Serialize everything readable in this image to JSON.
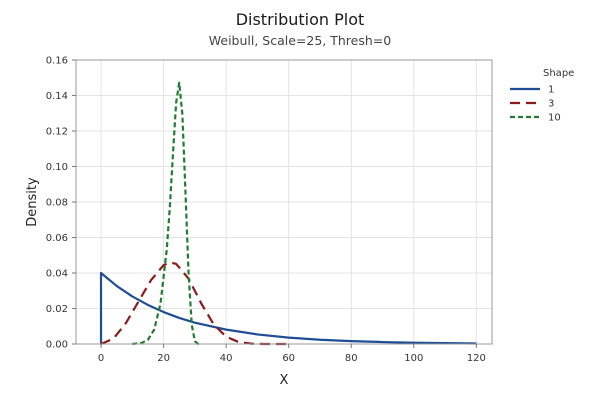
{
  "chart_data": {
    "type": "line",
    "title": "Distribution Plot",
    "subtitle": "Weibull, Scale=25, Thresh=0",
    "xlabel": "X",
    "ylabel": "Density",
    "xlim": [
      -8,
      125
    ],
    "ylim": [
      0,
      0.16
    ],
    "x_ticks": [
      0,
      20,
      40,
      60,
      80,
      100,
      120
    ],
    "y_ticks": [
      0.0,
      0.02,
      0.04,
      0.06,
      0.08,
      0.1,
      0.12,
      0.14,
      0.16
    ],
    "y_tick_labels": [
      "0.00",
      "0.02",
      "0.04",
      "0.06",
      "0.08",
      "0.10",
      "0.12",
      "0.14",
      "0.16"
    ],
    "grid": true,
    "legend": {
      "title": "Shape",
      "placement": "right"
    },
    "series": [
      {
        "name": "1",
        "color": "#1f4e96",
        "dash": "solid",
        "x": [
          0,
          0,
          5,
          10,
          15,
          20,
          25,
          30,
          40,
          50,
          60,
          70,
          80,
          90,
          100,
          110,
          120
        ],
        "y": [
          0,
          0.04,
          0.0327,
          0.0268,
          0.022,
          0.018,
          0.0147,
          0.012,
          0.0081,
          0.0054,
          0.0036,
          0.0024,
          0.0016,
          0.0011,
          0.0007,
          0.0005,
          0.0003
        ]
      },
      {
        "name": "3",
        "color": "#8b1a1a",
        "dash": "long-dash",
        "x": [
          0,
          4,
          8,
          12,
          16,
          20,
          22,
          24,
          28,
          32,
          36,
          40,
          44,
          48,
          52,
          56,
          60
        ],
        "y": [
          0,
          0.0031,
          0.0119,
          0.024,
          0.036,
          0.0444,
          0.0459,
          0.0452,
          0.0368,
          0.023,
          0.0111,
          0.0041,
          0.0011,
          0.0002,
          0.0,
          0.0,
          0.0
        ]
      },
      {
        "name": "10",
        "color": "#1e7d32",
        "dash": "short-dash",
        "x": [
          10,
          13,
          15,
          17,
          19,
          21,
          22,
          23,
          24,
          25,
          26,
          27,
          28,
          29,
          30,
          31,
          32
        ],
        "y": [
          0.0,
          0.0006,
          0.0024,
          0.0081,
          0.0227,
          0.053,
          0.077,
          0.107,
          0.1357,
          0.1472,
          0.1295,
          0.0856,
          0.0393,
          0.0109,
          0.0016,
          0.0001,
          0.0
        ]
      }
    ]
  }
}
